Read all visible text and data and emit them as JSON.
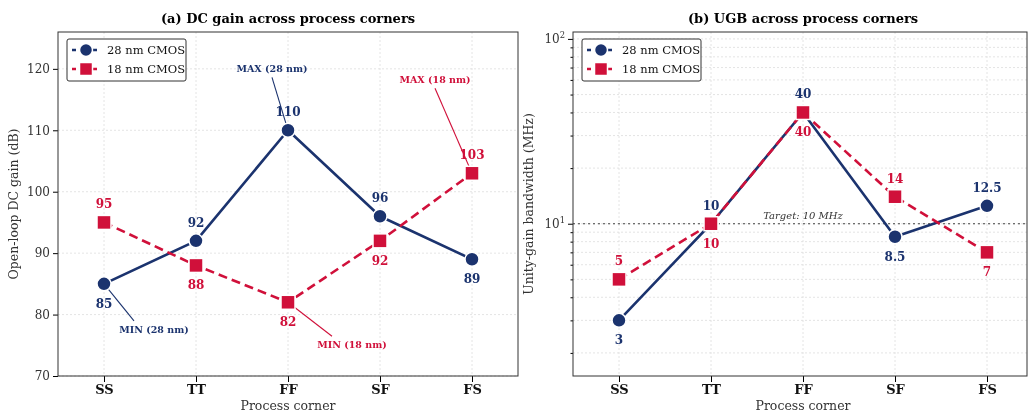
{
  "chart_data": [
    {
      "type": "line",
      "title": "(a) DC gain across process corners",
      "xlabel": "Process corner",
      "ylabel": "Open-loop DC gain (dB)",
      "categories": [
        "SS",
        "TT",
        "FF",
        "SF",
        "FS"
      ],
      "series": [
        {
          "name": "28 nm CMOS",
          "color": "#1b336e",
          "values": [
            85,
            92,
            110,
            96,
            89
          ],
          "marker": "circle",
          "line_style": "solid"
        },
        {
          "name": "18 nm CMOS",
          "color": "#d0103a",
          "values": [
            95,
            88,
            82,
            92,
            103
          ],
          "marker": "square",
          "line_style": "dashed"
        }
      ],
      "ylim": [
        70,
        126
      ],
      "yticks": [
        70,
        80,
        90,
        100,
        110,
        120
      ],
      "grid": true,
      "legend": "top left",
      "data_labels": true,
      "annotations": [
        {
          "text": "MIN (28 nm)",
          "x": "SS",
          "y": 85
        },
        {
          "text": "MAX (28 nm)",
          "x": "FF",
          "y": 110
        },
        {
          "text": "MIN (18 nm)",
          "x": "FF",
          "y": 82
        },
        {
          "text": "MAX (18 nm)",
          "x": "FS",
          "y": 103
        }
      ]
    },
    {
      "type": "line",
      "title": "(b) UGB across process corners",
      "xlabel": "Process corner",
      "ylabel": "Unity-gain bandwidth (MHz)",
      "categories": [
        "SS",
        "TT",
        "FF",
        "SF",
        "FS"
      ],
      "series": [
        {
          "name": "28 nm CMOS",
          "color": "#1b336e",
          "values": [
            3,
            10,
            40,
            8.5,
            12.5
          ],
          "marker": "circle",
          "line_style": "solid"
        },
        {
          "name": "18 nm CMOS",
          "color": "#d0103a",
          "values": [
            5,
            10,
            40,
            14,
            7
          ],
          "marker": "square",
          "line_style": "dashed"
        }
      ],
      "ylim": [
        1.5,
        109
      ],
      "log": true,
      "yticks": [
        {
          "value": 2,
          "label": null
        },
        {
          "value": 3,
          "label": null
        },
        {
          "value": 4,
          "label": null
        },
        {
          "value": 5,
          "label": null
        },
        {
          "value": 6,
          "label": null
        },
        {
          "value": 7,
          "label": null
        },
        {
          "value": 8,
          "label": null
        },
        {
          "value": 9,
          "label": null
        },
        {
          "value": 10,
          "label": "10$^{1}$"
        },
        {
          "value": 20,
          "label": null
        },
        {
          "value": 30,
          "label": null
        },
        {
          "value": 40,
          "label": null
        },
        {
          "value": 50,
          "label": null
        },
        {
          "value": 60,
          "label": null
        },
        {
          "value": 70,
          "label": null
        },
        {
          "value": 80,
          "label": null
        },
        {
          "value": 90,
          "label": null
        },
        {
          "value": 100,
          "label": "10$^{2}$"
        }
      ],
      "grid": true,
      "legend": "top left",
      "data_labels": true,
      "ref_lines": [
        {
          "axis": "y",
          "value": 10,
          "label": "Target: 10 MHz",
          "color": "#444444",
          "line_style": "dotted"
        }
      ]
    }
  ]
}
